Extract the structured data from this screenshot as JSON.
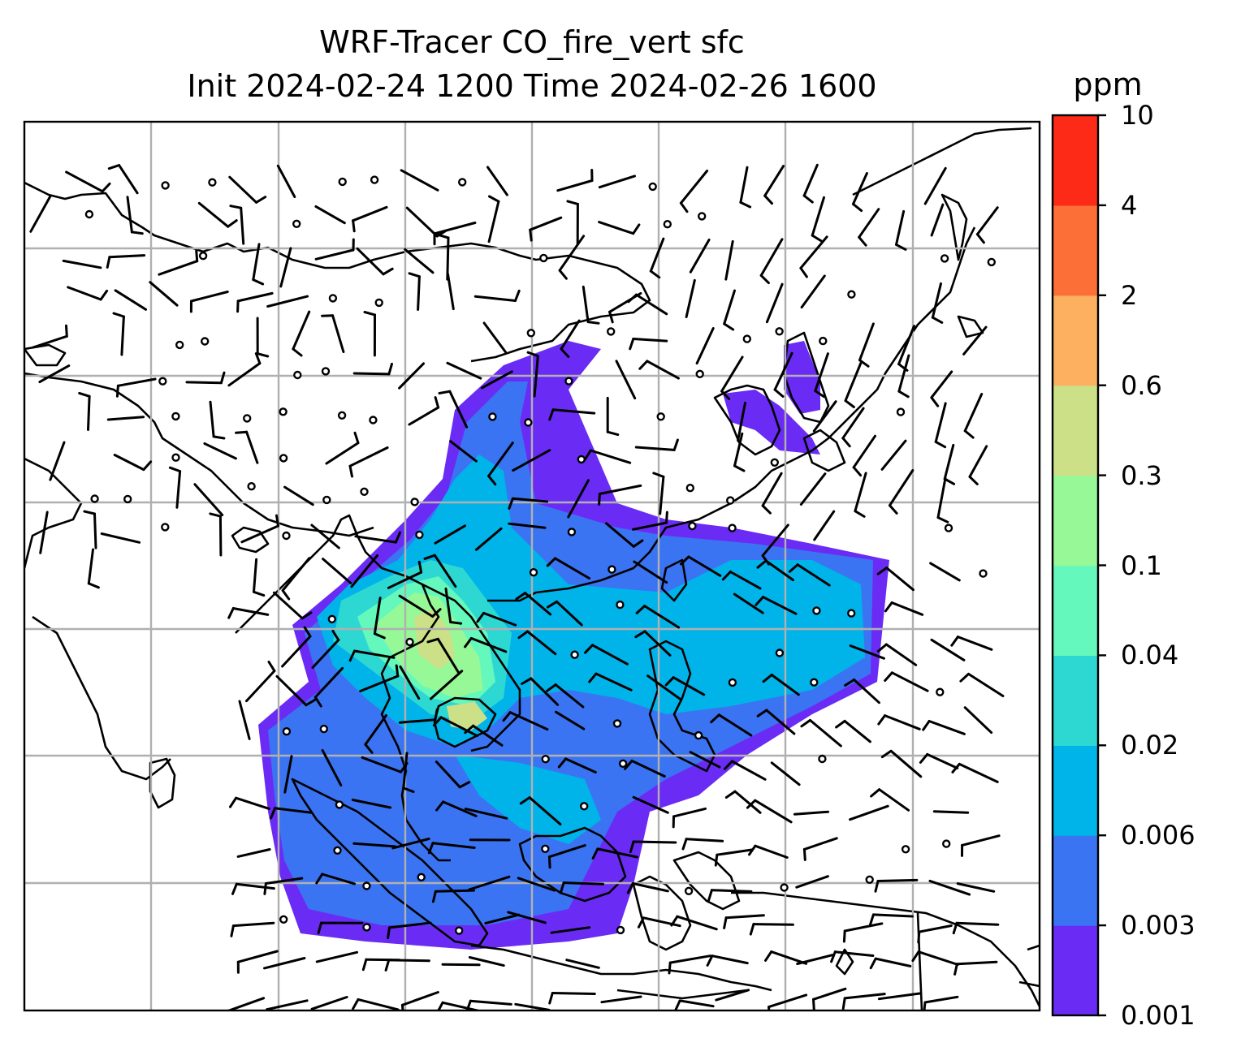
{
  "title": {
    "line1": "WRF-Tracer CO_fire_vert sfc",
    "line2": "Init 2024-02-24 1200 Time 2024-02-26 1600"
  },
  "colorbar": {
    "unit": "ppm",
    "levels": [
      "0.001",
      "0.003",
      "0.006",
      "0.02",
      "0.04",
      "0.1",
      "0.3",
      "0.6",
      "2",
      "4",
      "10"
    ],
    "colors": [
      "#6a2cf5",
      "#3a74f2",
      "#00b4ea",
      "#2ed8d2",
      "#64f8bc",
      "#96f896",
      "#cce088",
      "#fcb060",
      "#fc7038",
      "#fc2a16"
    ]
  },
  "map": {
    "background": "#ffffff",
    "coastline_color": "#000000",
    "gridline_color": "#b0b0b0",
    "fields": {
      "plume_layers": [
        "0.001",
        "0.003",
        "0.006",
        "0.02",
        "0.04",
        "0.1",
        "0.3"
      ],
      "wind_barbs": "present",
      "calm_circles": "present"
    }
  }
}
